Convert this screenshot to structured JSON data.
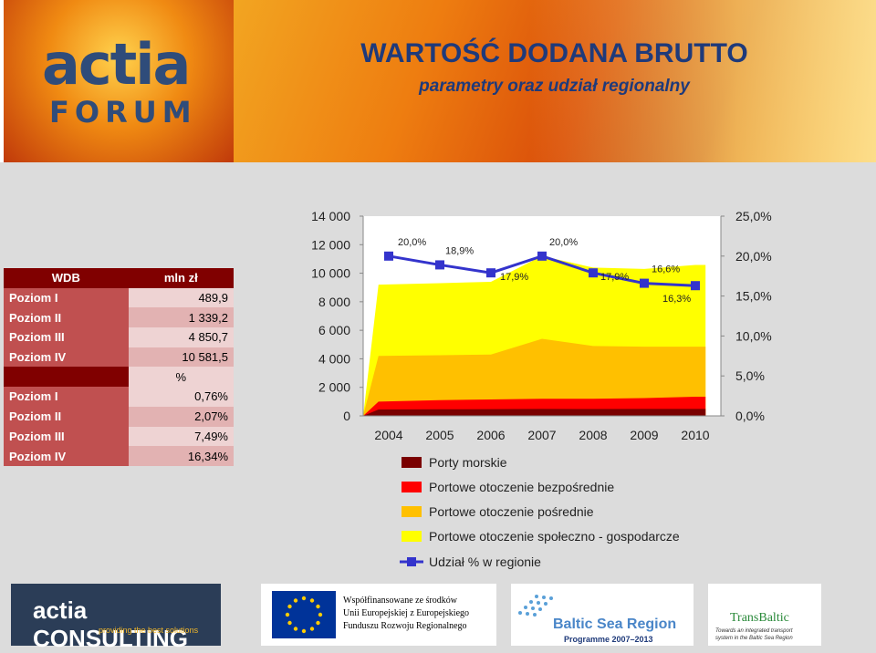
{
  "header": {
    "logo_top": "actia",
    "logo_bottom": "FORUM",
    "title": "WARTOŚĆ DODANA BRUTTO",
    "subtitle": "parametry oraz udział regionalny"
  },
  "table": {
    "header_label": "WDB",
    "header_unit": "mln zł",
    "rows_mln": [
      {
        "label": "Poziom I",
        "value": "489,9"
      },
      {
        "label": "Poziom II",
        "value": "1 339,2"
      },
      {
        "label": "Poziom III",
        "value": "4 850,7"
      },
      {
        "label": "Poziom IV",
        "value": "10 581,5"
      }
    ],
    "percent_unit": "%",
    "rows_pct": [
      {
        "label": "Poziom I",
        "value": "0,76%"
      },
      {
        "label": "Poziom II",
        "value": "2,07%"
      },
      {
        "label": "Poziom III",
        "value": "7,49%"
      },
      {
        "label": "Poziom IV",
        "value": "16,34%"
      }
    ]
  },
  "chart_data": {
    "type": "area",
    "x": [
      "2004",
      "2005",
      "2006",
      "2007",
      "2008",
      "2009",
      "2010"
    ],
    "y_left_ticks": [
      "0",
      "2 000",
      "4 000",
      "6 000",
      "8 000",
      "10 000",
      "12 000",
      "14 000"
    ],
    "y_left_lim": [
      0,
      14000
    ],
    "y_right_ticks": [
      "0,0%",
      "5,0%",
      "10,0%",
      "15,0%",
      "20,0%",
      "25,0%"
    ],
    "y_right_lim": [
      0,
      25
    ],
    "series": [
      {
        "name": "Porty morskie",
        "color": "#7a0000",
        "values": [
          450,
          460,
          470,
          490,
          480,
          485,
          490
        ]
      },
      {
        "name": "Portowe otoczenie bezpośrednie",
        "color": "#ff0000",
        "values": [
          1000,
          1100,
          1150,
          1200,
          1200,
          1250,
          1340
        ]
      },
      {
        "name": "Portowe otoczenie pośrednie",
        "color": "#ffc000",
        "values": [
          4200,
          4250,
          4300,
          5400,
          4900,
          4850,
          4850
        ]
      },
      {
        "name": "Portowe otoczenie społeczno - gospodarcze",
        "color": "#ffff00",
        "values": [
          9200,
          9300,
          9400,
          11200,
          10400,
          10300,
          10580
        ]
      }
    ],
    "line_series": {
      "name": "Udział % w regionie",
      "color": "#3333cc",
      "values": [
        20.0,
        18.9,
        17.9,
        20.0,
        17.9,
        16.6,
        16.3
      ],
      "labels": [
        "20,0%",
        "18,9%",
        "17,9%",
        "20,0%",
        "17,9%",
        "16,6%",
        "16,3%"
      ]
    },
    "legend_position": "bottom"
  },
  "footer": {
    "logo1_main": "actia CONSULTING",
    "logo1_tag": "providing the best solutions",
    "eu_text_lines": [
      "Współfinansowane ze środków",
      "Unii Europejskiej z Europejskiego",
      "Funduszu Rozwoju Regionalnego"
    ],
    "bsr_title": "Baltic Sea Region",
    "bsr_programme": "Programme 2007–2013",
    "tb_title": "TransBaltic",
    "tb_lines": [
      "Towards an integrated transport",
      "system in the Baltic Sea Region"
    ]
  },
  "colors": {
    "title": "#1f3a7a",
    "table_header": "#800000",
    "table_label": "#c05050"
  }
}
